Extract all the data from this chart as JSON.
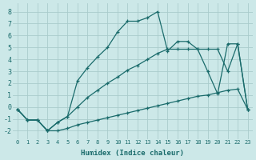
{
  "xlabel": "Humidex (Indice chaleur)",
  "bg_color": "#cce8e8",
  "grid_color": "#aacccc",
  "line_color": "#1a6b6b",
  "xlim": [
    -0.5,
    23.5
  ],
  "ylim": [
    -2.7,
    8.7
  ],
  "xticks": [
    0,
    1,
    2,
    3,
    4,
    5,
    6,
    7,
    8,
    9,
    10,
    11,
    12,
    13,
    14,
    15,
    16,
    17,
    18,
    19,
    20,
    21,
    22,
    23
  ],
  "yticks": [
    -2,
    -1,
    0,
    1,
    2,
    3,
    4,
    5,
    6,
    7,
    8
  ],
  "line_upper_x": [
    0,
    1,
    2,
    3,
    4,
    5,
    6,
    7,
    8,
    9,
    10,
    11,
    12,
    13,
    14,
    15,
    16,
    17,
    18,
    19,
    20,
    21,
    22,
    23
  ],
  "line_upper_y": [
    -0.2,
    -1.1,
    -1.1,
    -2.0,
    -1.3,
    -0.8,
    2.2,
    3.3,
    4.2,
    5.0,
    6.3,
    7.2,
    7.2,
    7.5,
    8.0,
    4.7,
    5.5,
    5.5,
    4.85,
    3.0,
    1.1,
    5.3,
    5.3,
    -0.2
  ],
  "line_mid_x": [
    0,
    1,
    2,
    3,
    4,
    5,
    6,
    7,
    8,
    9,
    10,
    11,
    12,
    13,
    14,
    15,
    16,
    17,
    18,
    19,
    20,
    21,
    22,
    23
  ],
  "line_mid_y": [
    -0.2,
    -1.1,
    -1.1,
    -2.0,
    -1.3,
    -0.8,
    0.0,
    0.8,
    1.4,
    2.0,
    2.5,
    3.1,
    3.5,
    4.0,
    4.5,
    4.85,
    4.85,
    4.85,
    4.85,
    4.85,
    4.85,
    3.0,
    5.3,
    -0.2
  ],
  "line_bot_x": [
    0,
    1,
    2,
    3,
    4,
    5,
    6,
    7,
    8,
    9,
    10,
    11,
    12,
    13,
    14,
    15,
    16,
    17,
    18,
    19,
    20,
    21,
    22,
    23
  ],
  "line_bot_y": [
    -0.2,
    -1.1,
    -1.1,
    -2.0,
    -2.0,
    -1.8,
    -1.5,
    -1.3,
    -1.1,
    -0.9,
    -0.7,
    -0.5,
    -0.3,
    -0.1,
    0.1,
    0.3,
    0.5,
    0.7,
    0.9,
    1.0,
    1.2,
    1.4,
    1.5,
    -0.2
  ]
}
